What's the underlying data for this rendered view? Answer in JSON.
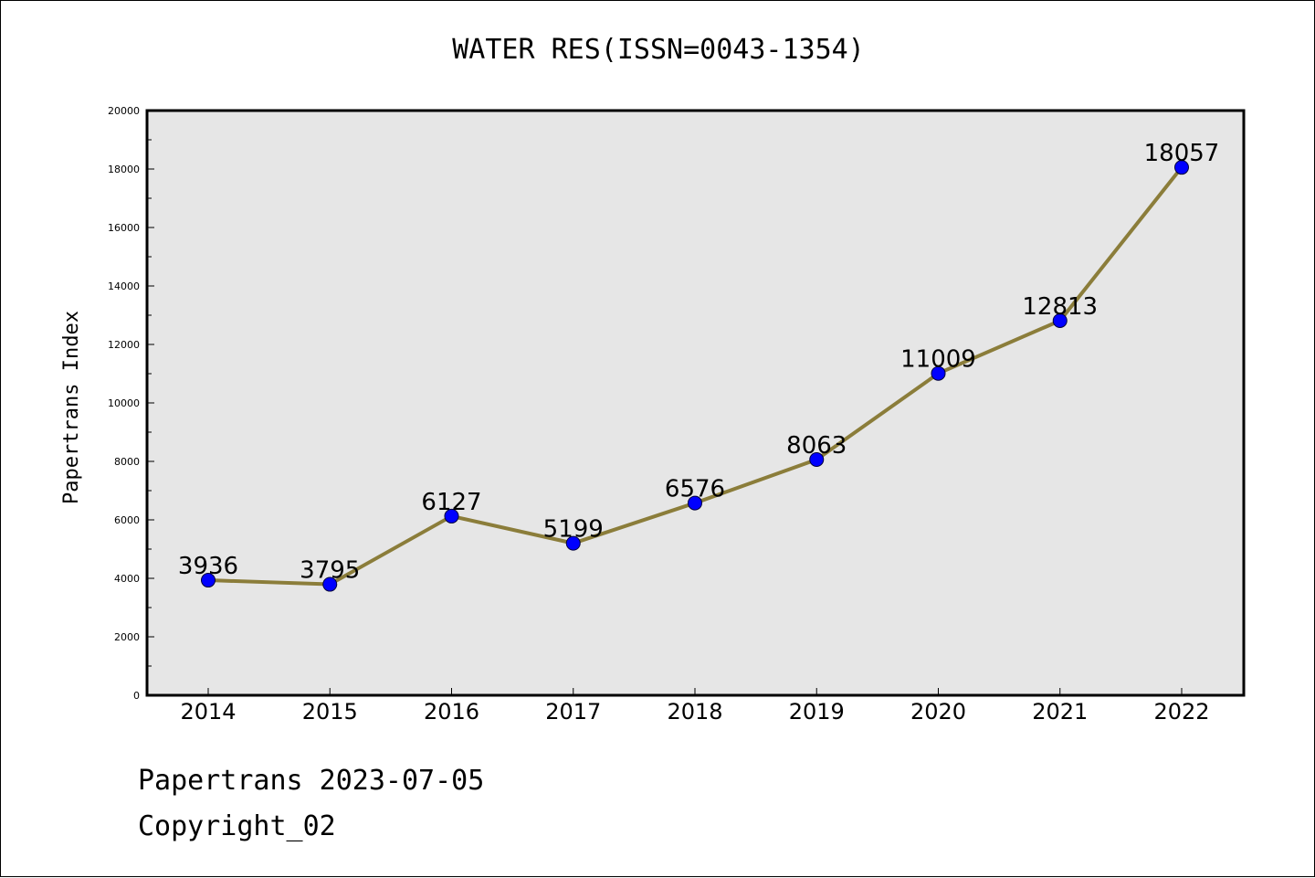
{
  "chart_data": {
    "type": "line",
    "title": "WATER RES(ISSN=0043-1354)",
    "ylabel": "Papertrans Index",
    "xlabel": "",
    "categories": [
      "2014",
      "2015",
      "2016",
      "2017",
      "2018",
      "2019",
      "2020",
      "2021",
      "2022"
    ],
    "series": [
      {
        "values": [
          3936,
          3795,
          6127,
          5199,
          6576,
          8063,
          11009,
          12813,
          18057
        ]
      }
    ],
    "ylim": [
      0,
      20000
    ],
    "yticks": [
      0,
      2000,
      4000,
      6000,
      8000,
      10000,
      12000,
      14000,
      16000,
      18000,
      20000
    ],
    "grid": false,
    "legend": "none",
    "colors": {
      "line": "#8b7d3a",
      "marker": "#0000ff",
      "plot_background": "#e6e6e6"
    }
  },
  "footer": {
    "date_text": "Papertrans 2023-07-05",
    "copyright_text": "Copyright_02"
  }
}
